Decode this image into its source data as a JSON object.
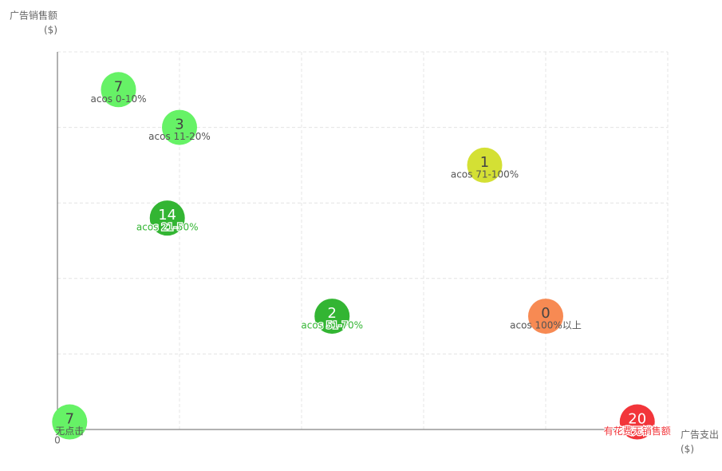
{
  "chart_data": {
    "type": "scatter",
    "y_label": "广告销售额",
    "y_unit": "($)",
    "x_label": "广告支出",
    "x_unit": "($)",
    "xlim": [
      0,
      5
    ],
    "ylim": [
      0,
      5
    ],
    "xticks": [
      0,
      {
        "value": 1,
        "label": null
      },
      {
        "value": 2,
        "label": null
      },
      {
        "value": 3,
        "label": null
      },
      {
        "value": 4,
        "label": null
      },
      {
        "value": 5,
        "label": null
      }
    ],
    "yticks": [
      {
        "value": 0,
        "label": null
      },
      {
        "value": 1,
        "label": null
      },
      {
        "value": 2,
        "label": null
      },
      {
        "value": 3,
        "label": null
      },
      {
        "value": 4,
        "label": null
      },
      {
        "value": 5,
        "label": null
      }
    ],
    "grid": true,
    "series": [
      {
        "name": "acos 0-10%",
        "count": 7,
        "color": "#66f266",
        "text_color": "#555555",
        "x": [
          0.5
        ],
        "values": [
          4.5
        ]
      },
      {
        "name": "acos 11-20%",
        "count": 3,
        "color": "#66f266",
        "text_color": "#555555",
        "x": [
          1.0
        ],
        "values": [
          4.0
        ]
      },
      {
        "name": "acos 71-100%",
        "count": 1,
        "color": "#d4e034",
        "text_color": "#555555",
        "x": [
          3.5
        ],
        "values": [
          3.5
        ]
      },
      {
        "name": "acos 21-50%",
        "count": 14,
        "color": "#33b533",
        "text_color": "#33b533",
        "x": [
          0.9
        ],
        "values": [
          2.8
        ]
      },
      {
        "name": "acos 51-70%",
        "count": 2,
        "color": "#33b533",
        "text_color": "#33b533",
        "x": [
          2.25
        ],
        "values": [
          1.5
        ]
      },
      {
        "name": "acos 100%以上",
        "count": 0,
        "color": "#f78a53",
        "text_color": "#555555",
        "x": [
          4.0
        ],
        "values": [
          1.5
        ]
      },
      {
        "name": "无点击",
        "count": 7,
        "color": "#66f266",
        "text_color": "#555555",
        "x": [
          0.1
        ],
        "values": [
          0.1
        ]
      },
      {
        "name": "有花费无销售额",
        "count": 20,
        "color": "#f2353a",
        "text_color": "#f2353a",
        "x": [
          4.75
        ],
        "values": [
          0.1
        ]
      }
    ]
  }
}
